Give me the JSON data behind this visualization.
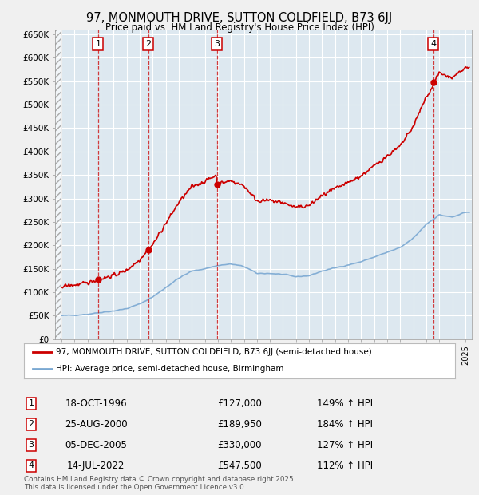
{
  "title": "97, MONMOUTH DRIVE, SUTTON COLDFIELD, B73 6JJ",
  "subtitle": "Price paid vs. HM Land Registry's House Price Index (HPI)",
  "sales": [
    {
      "num": 1,
      "date": "18-OCT-1996",
      "year": 1996.8,
      "price": 127000,
      "label": "149% ↑ HPI"
    },
    {
      "num": 2,
      "date": "25-AUG-2000",
      "year": 2000.65,
      "price": 189950,
      "label": "184% ↑ HPI"
    },
    {
      "num": 3,
      "date": "05-DEC-2005",
      "year": 2005.92,
      "price": 330000,
      "label": "127% ↑ HPI"
    },
    {
      "num": 4,
      "date": "14-JUL-2022",
      "year": 2022.54,
      "price": 547500,
      "label": "112% ↑ HPI"
    }
  ],
  "legend_property": "97, MONMOUTH DRIVE, SUTTON COLDFIELD, B73 6JJ (semi-detached house)",
  "legend_hpi": "HPI: Average price, semi-detached house, Birmingham",
  "footer": "Contains HM Land Registry data © Crown copyright and database right 2025.\nThis data is licensed under the Open Government Licence v3.0.",
  "property_color": "#cc0000",
  "hpi_color": "#7aa8d2",
  "background_color": "#f0f0f0",
  "plot_bg_color": "#dde8f0",
  "ylim": [
    0,
    660000
  ],
  "xlim": [
    1993.5,
    2025.5
  ],
  "yticks": [
    0,
    50000,
    100000,
    150000,
    200000,
    250000,
    300000,
    350000,
    400000,
    450000,
    500000,
    550000,
    600000,
    650000
  ],
  "ytick_labels": [
    "£0",
    "£50K",
    "£100K",
    "£150K",
    "£200K",
    "£250K",
    "£300K",
    "£350K",
    "£400K",
    "£450K",
    "£500K",
    "£550K",
    "£600K",
    "£650K"
  ]
}
